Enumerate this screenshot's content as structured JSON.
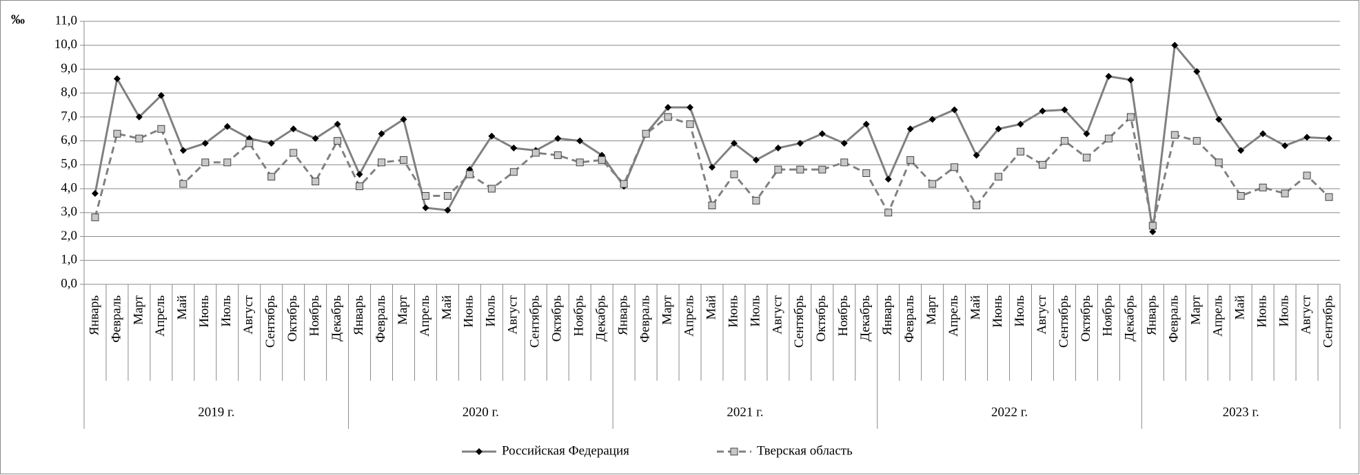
{
  "chart_data": {
    "type": "line",
    "y_unit": "‰",
    "ylim": [
      0,
      11
    ],
    "yticks": [
      {
        "value": 0,
        "label": "0,0"
      },
      {
        "value": 1,
        "label": "1,0"
      },
      {
        "value": 2,
        "label": "2,0"
      },
      {
        "value": 3,
        "label": "3,0"
      },
      {
        "value": 4,
        "label": "4,0"
      },
      {
        "value": 5,
        "label": "5,0"
      },
      {
        "value": 6,
        "label": "6,0"
      },
      {
        "value": 7,
        "label": "7,0"
      },
      {
        "value": 8,
        "label": "8,0"
      },
      {
        "value": 9,
        "label": "9,0"
      },
      {
        "value": 10,
        "label": "10,0"
      },
      {
        "value": 11,
        "label": "11,0"
      }
    ],
    "grid": true,
    "category_groups": [
      {
        "label": "2019 г.",
        "categories": [
          "Январь",
          "Февраль",
          "Март",
          "Апрель",
          "Май",
          "Июнь",
          "Июль",
          "Август",
          "Сентябрь",
          "Октябрь",
          "Ноябрь",
          "Декабрь"
        ]
      },
      {
        "label": "2020 г.",
        "categories": [
          "Январь",
          "Февраль",
          "Март",
          "Апрель",
          "Май",
          "Июнь",
          "Июль",
          "Август",
          "Сентябрь",
          "Октябрь",
          "Ноябрь",
          "Декабрь"
        ]
      },
      {
        "label": "2021 г.",
        "categories": [
          "Январь",
          "Февраль",
          "Март",
          "Апрель",
          "Май",
          "Июнь",
          "Июль",
          "Август",
          "Сентябрь",
          "Октябрь",
          "Ноябрь",
          "Декабрь"
        ]
      },
      {
        "label": "2022 г.",
        "categories": [
          "Январь",
          "Февраль",
          "Март",
          "Апрель",
          "Май",
          "Июнь",
          "Июль",
          "Август",
          "Сентябрь",
          "Октябрь",
          "Ноябрь",
          "Декабрь"
        ]
      },
      {
        "label": "2023 г.",
        "categories": [
          "Январь",
          "Февраль",
          "Март",
          "Апрель",
          "Май",
          "Июнь",
          "Июль",
          "Август",
          "Сентябрь"
        ]
      }
    ],
    "series": [
      {
        "name": "Российская Федерация",
        "color": "#808080",
        "marker": "diamond",
        "marker_color": "#000000",
        "dash": false,
        "values": [
          3.8,
          8.6,
          7.0,
          7.9,
          5.6,
          5.9,
          6.6,
          6.1,
          5.9,
          6.5,
          6.1,
          6.7,
          4.6,
          6.3,
          6.9,
          3.2,
          3.1,
          4.8,
          6.2,
          5.7,
          5.6,
          6.1,
          6.0,
          5.4,
          4.1,
          6.3,
          7.4,
          7.4,
          4.9,
          5.9,
          5.2,
          5.7,
          5.9,
          6.3,
          5.9,
          6.7,
          4.4,
          6.5,
          6.9,
          7.3,
          5.4,
          6.5,
          6.7,
          7.25,
          7.3,
          6.3,
          8.7,
          8.55,
          2.2,
          10.0,
          8.9,
          6.9,
          5.6,
          6.3,
          5.8,
          6.15,
          6.1
        ]
      },
      {
        "name": "Тверская область",
        "color": "#808080",
        "marker": "square",
        "marker_color": "#c8c8c8",
        "dash": true,
        "values": [
          2.8,
          6.3,
          6.1,
          6.5,
          4.2,
          5.1,
          5.1,
          5.9,
          4.5,
          5.5,
          4.3,
          6.0,
          4.1,
          5.1,
          5.2,
          3.7,
          3.7,
          4.6,
          4.0,
          4.7,
          5.5,
          5.4,
          5.1,
          5.2,
          4.2,
          6.3,
          7.0,
          6.7,
          3.3,
          4.6,
          3.5,
          4.8,
          4.8,
          4.8,
          5.1,
          4.65,
          3.0,
          5.2,
          4.2,
          4.9,
          3.3,
          4.5,
          5.55,
          5.0,
          6.0,
          5.3,
          6.1,
          7.0,
          2.45,
          6.25,
          6.0,
          5.1,
          3.7,
          4.05,
          3.8,
          4.55,
          3.65
        ]
      }
    ]
  }
}
